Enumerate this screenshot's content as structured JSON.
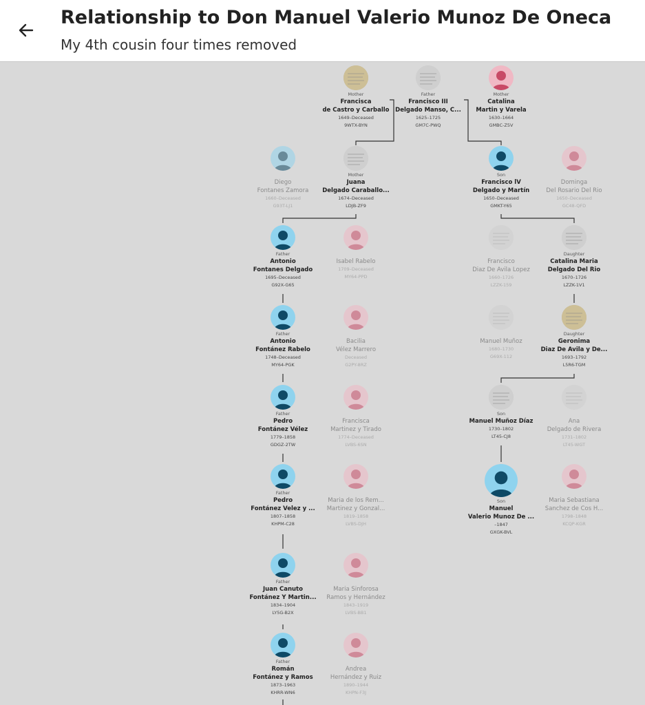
{
  "header": {
    "title": "Relationship to Don Manuel Valerio Munoz De Oneca",
    "subtitle": "My 4th cousin four times removed"
  },
  "colors": {
    "male": "#8fd3ee",
    "female": "#f0b8c4",
    "line": "#333333",
    "background": "#d9d9d9"
  },
  "people": [
    {
      "rel": "Mother",
      "name1": "Francisca",
      "name2": "de Castro y Carballo",
      "dates": "1649–Deceased",
      "pid": "9WTX-BYN",
      "avatar": "photo2",
      "dim": false
    },
    {
      "rel": "Father",
      "name1": "Francisco III",
      "name2": "Delgado Manso, C...",
      "dates": "1625–1725",
      "pid": "GM7C-PWQ",
      "avatar": "photo",
      "dim": false
    },
    {
      "rel": "Mother",
      "name1": "Catalina",
      "name2": "Martin y Varela",
      "dates": "1630–1664",
      "pid": "GMBC-Z5V",
      "avatar": "female",
      "dim": false
    },
    {
      "rel": "",
      "name1": "Diego",
      "name2": "Fontanes Zamora",
      "dates": "1660–Deceased",
      "pid": "G93T-LJ1",
      "avatar": "male",
      "dim": true
    },
    {
      "rel": "Mother",
      "name1": "Juana",
      "name2": "Delgado Caraballo...",
      "dates": "1674–Deceased",
      "pid": "LDJB-ZF9",
      "avatar": "photo",
      "dim": false
    },
    {
      "rel": "Son",
      "name1": "Francisco lV",
      "name2": "Delgado y Martín",
      "dates": "1650–Deceased",
      "pid": "GMKT-Y65",
      "avatar": "male",
      "dim": false
    },
    {
      "rel": "",
      "name1": "Dominga",
      "name2": "Del Rosario Del Rio",
      "dates": "1650–Deceased",
      "pid": "GC48-QFD",
      "avatar": "female",
      "dim": true
    },
    {
      "rel": "Father",
      "name1": "Antonio",
      "name2": "Fontanes Delgado",
      "dates": "1695–Deceased",
      "pid": "G92X-G65",
      "avatar": "male",
      "dim": false
    },
    {
      "rel": "",
      "name1": "Isabel Rabelo",
      "name2": "",
      "dates": "1709–Deceased",
      "pid": "MY64-PPD",
      "avatar": "female",
      "dim": true
    },
    {
      "rel": "",
      "name1": "Francisco",
      "name2": "Diaz De Avila Lopez",
      "dates": "1660–1726",
      "pid": "LZZK-159",
      "avatar": "photo",
      "dim": true
    },
    {
      "rel": "Daughter",
      "name1": "Catalina Maria",
      "name2": "Delgado Del Rio",
      "dates": "1670–1726",
      "pid": "LZZK-1V1",
      "avatar": "photo",
      "dim": false
    },
    {
      "rel": "Father",
      "name1": "Antonio",
      "name2": "Fontánez Rabelo",
      "dates": "1748–Deceased",
      "pid": "MY64-PGK",
      "avatar": "male",
      "dim": false
    },
    {
      "rel": "",
      "name1": "Bacilia",
      "name2": "Vélez Marrero",
      "dates": "Deceased",
      "pid": "G2PY-8RZ",
      "avatar": "female",
      "dim": true
    },
    {
      "rel": "",
      "name1": "Manuel Muñoz",
      "name2": "",
      "dates": "1680–1730",
      "pid": "G69X-112",
      "avatar": "photo",
      "dim": true
    },
    {
      "rel": "Daughter",
      "name1": "Geronima",
      "name2": "Diaz De Avila y De...",
      "dates": "1693–1792",
      "pid": "L5R6-TGM",
      "avatar": "photo2",
      "dim": false
    },
    {
      "rel": "Father",
      "name1": "Pedro",
      "name2": "Fontánez Vélez",
      "dates": "1779–1858",
      "pid": "GDGZ-2TW",
      "avatar": "male",
      "dim": false
    },
    {
      "rel": "",
      "name1": "Francisca",
      "name2": "Martinez y Tirado",
      "dates": "1774–Deceased",
      "pid": "LVBS-6SN",
      "avatar": "female",
      "dim": true
    },
    {
      "rel": "Son",
      "name1": "Manuel Muñoz Díaz",
      "name2": "",
      "dates": "1730–1802",
      "pid": "LT45-CJ8",
      "avatar": "photo",
      "dim": false
    },
    {
      "rel": "",
      "name1": "Ana",
      "name2": "Delgado de Rivera",
      "dates": "1731–1802",
      "pid": "LT45-WGT",
      "avatar": "photo",
      "dim": true
    },
    {
      "rel": "Father",
      "name1": "Pedro",
      "name2": "Fontánez Velez y ...",
      "dates": "1807–1858",
      "pid": "KHPM-C28",
      "avatar": "male",
      "dim": false
    },
    {
      "rel": "",
      "name1": "Maria de los Rem...",
      "name2": "Martinez y Gonzal...",
      "dates": "1819–1858",
      "pid": "LVBS-DJH",
      "avatar": "female",
      "dim": true
    },
    {
      "rel": "Son",
      "name1": "Manuel",
      "name2": "Valerio Munoz De ...",
      "dates": "–1847",
      "pid": "GXGK-BVL",
      "avatar": "male",
      "dim": false
    },
    {
      "rel": "",
      "name1": "Maria Sebastiana",
      "name2": "Sanchez de Cos H...",
      "dates": "1798–1848",
      "pid": "KCQP-KGR",
      "avatar": "female",
      "dim": true
    },
    {
      "rel": "Father",
      "name1": "Juan Canuto",
      "name2": "Fontánez Y Martin...",
      "dates": "1834–1904",
      "pid": "LY5G-B2X",
      "avatar": "male",
      "dim": false
    },
    {
      "rel": "",
      "name1": "Maria Sinforosa",
      "name2": "Ramos y Hernández",
      "dates": "1843–1919",
      "pid": "LVBS-BB1",
      "avatar": "female",
      "dim": true
    },
    {
      "rel": "Father",
      "name1": "Román",
      "name2": "Fontánez y Ramos",
      "dates": "1873–1963",
      "pid": "KHRR-WN6",
      "avatar": "male",
      "dim": false
    },
    {
      "rel": "",
      "name1": "Andrea",
      "name2": "Hernández y Ruiz",
      "dates": "1890–1944",
      "pid": "KHPN-F3J",
      "avatar": "female",
      "dim": true
    }
  ]
}
